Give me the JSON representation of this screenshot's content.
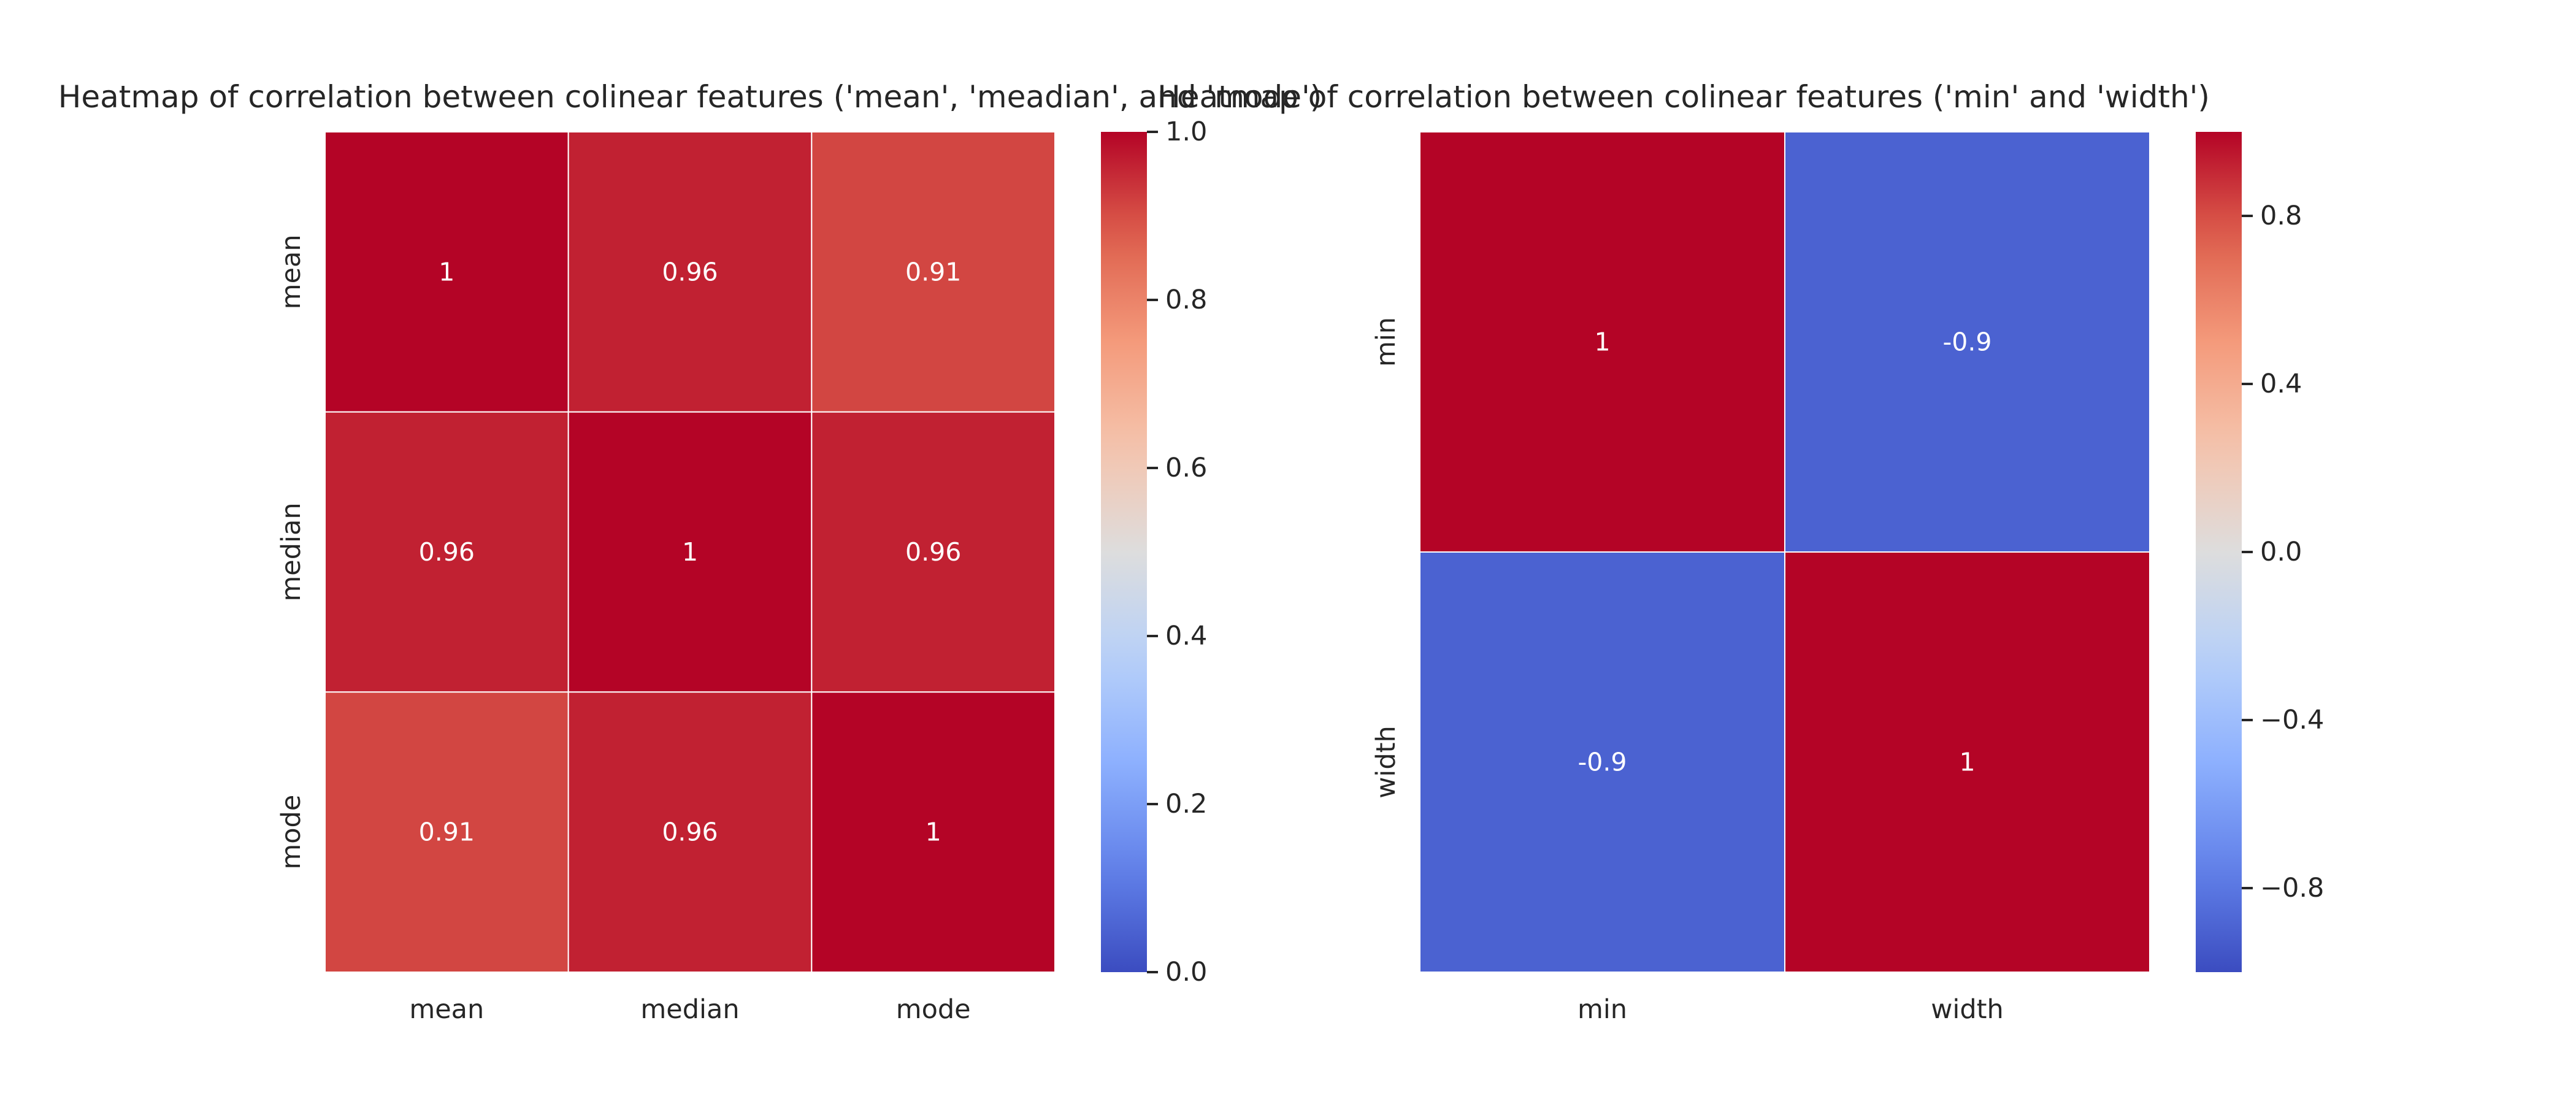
{
  "chart_data": [
    {
      "type": "heatmap",
      "title": "Heatmap of correlation between colinear features ('mean', 'meadian', and 'mode')",
      "x_labels": [
        "mean",
        "median",
        "mode"
      ],
      "y_labels": [
        "mean",
        "median",
        "mode"
      ],
      "values": [
        [
          1,
          0.96,
          0.91
        ],
        [
          0.96,
          1,
          0.96
        ],
        [
          0.91,
          0.96,
          1
        ]
      ],
      "annotations": [
        [
          "1",
          "0.96",
          "0.91"
        ],
        [
          "0.96",
          "1",
          "0.96"
        ],
        [
          "0.91",
          "0.96",
          "1"
        ]
      ],
      "colormap": "coolwarm",
      "colorbar": {
        "vmin": 0.0,
        "vmax": 1.0,
        "ticks": [
          0.0,
          0.2,
          0.4,
          0.6,
          0.8,
          1.0
        ],
        "tick_labels": [
          "0.0",
          "0.2",
          "0.4",
          "0.6",
          "0.8",
          "1.0"
        ]
      }
    },
    {
      "type": "heatmap",
      "title": "Heatmap of correlation between colinear features ('min' and 'width')",
      "x_labels": [
        "min",
        "width"
      ],
      "y_labels": [
        "min",
        "width"
      ],
      "values": [
        [
          1,
          -0.9
        ],
        [
          -0.9,
          1
        ]
      ],
      "annotations": [
        [
          "1",
          "-0.9"
        ],
        [
          "-0.9",
          "1"
        ]
      ],
      "colormap": "coolwarm",
      "colorbar": {
        "vmin": -1.0,
        "vmax": 1.0,
        "ticks": [
          -0.8,
          -0.4,
          0.0,
          0.4,
          0.8
        ],
        "tick_labels": [
          "−0.8",
          "−0.4",
          "0.0",
          "0.4",
          "0.8"
        ]
      }
    }
  ]
}
